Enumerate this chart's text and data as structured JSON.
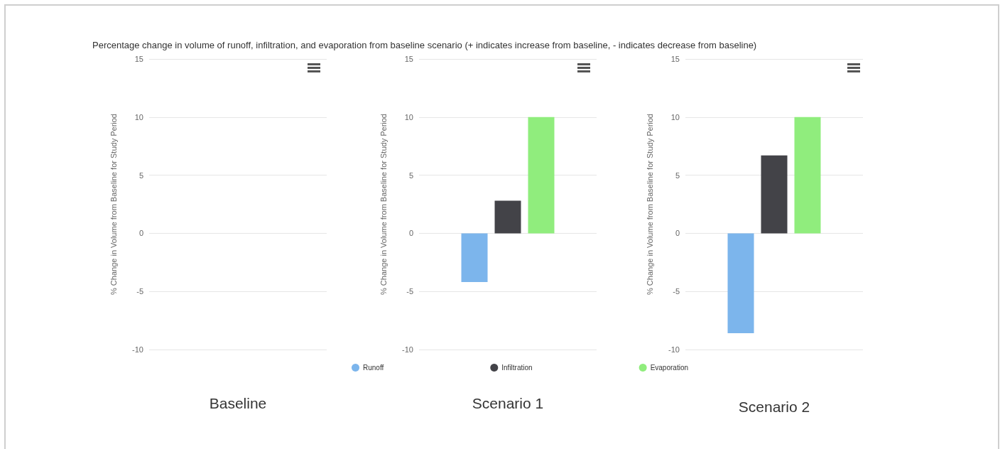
{
  "chart_data": [
    {
      "type": "bar",
      "xlabel": "Baseline",
      "ylabel": "% Change in Volume from Baseline for Study Period",
      "categories": [
        null
      ],
      "values": [
        null
      ],
      "ylim": [
        -10,
        15
      ],
      "yticks": [
        -10,
        -5,
        0,
        5,
        10,
        15
      ],
      "grid": "y",
      "legend": false
    },
    {
      "type": "bar",
      "title": "Percentage change in volume of runoff, infiltration, and evaporation from baseline scenario (+ indicates increase from baseline, - indicates decrease from baseline)",
      "xlabel": "Scenario 1",
      "ylabel": "% Change in Volume from Baseline for Study Period",
      "categories": [
        null
      ],
      "series": [
        {
          "name": "Runoff",
          "color": "#7cb5ec",
          "values": [
            -4.2
          ]
        },
        {
          "name": "Infiltration",
          "color": "#434348",
          "values": [
            2.8
          ]
        },
        {
          "name": "Evaporation",
          "color": "#90ed7d",
          "values": [
            10
          ]
        }
      ],
      "ylim": [
        -10,
        15
      ],
      "yticks": [
        -10,
        -5,
        0,
        5,
        10,
        15
      ],
      "grid": "y",
      "legend": "bottom"
    },
    {
      "type": "bar",
      "xlabel": "Scenario 2",
      "ylabel": "% Change in Volume from Baseline for Study Period",
      "categories": [
        null
      ],
      "series": [
        {
          "color": "#7cb5ec",
          "values": [
            -8.6
          ]
        },
        {
          "color": "#434348",
          "values": [
            6.7
          ]
        },
        {
          "color": "#90ed7d",
          "values": [
            10
          ]
        }
      ],
      "ylim": [
        -10,
        15
      ],
      "yticks": [
        -10,
        -5,
        0,
        5,
        10,
        15
      ],
      "grid": "y",
      "legend": false
    }
  ]
}
